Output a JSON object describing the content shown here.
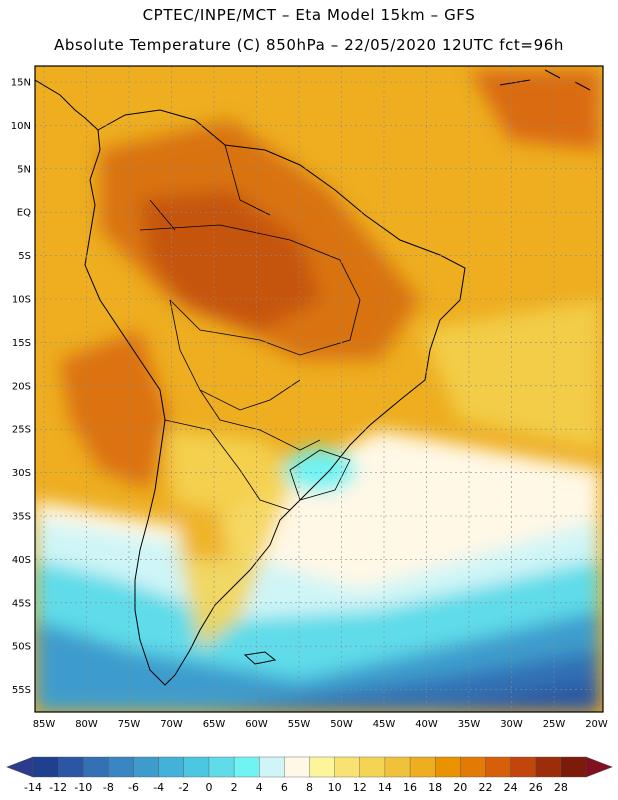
{
  "header": {
    "line1": "CPTEC/INPE/MCT –  Eta Model 15km – GFS",
    "line2": "Absolute Temperature (C) 850hPa – 22/05/2020 12UTC fct=96h"
  },
  "map": {
    "lat_labels": [
      "15N",
      "10N",
      "5N",
      "EQ",
      "5S",
      "10S",
      "15S",
      "20S",
      "25S",
      "30S",
      "35S",
      "40S",
      "45S",
      "50S",
      "55S"
    ],
    "lon_labels": [
      "85W",
      "80W",
      "75W",
      "70W",
      "65W",
      "60W",
      "55W",
      "50W",
      "45W",
      "40W",
      "35W",
      "30W",
      "25W",
      "20W"
    ]
  },
  "colorbar": {
    "labels": [
      "-14",
      "-12",
      "-10",
      "-8",
      "-6",
      "-4",
      "-2",
      "0",
      "2",
      "4",
      "6",
      "8",
      "10",
      "12",
      "14",
      "16",
      "18",
      "20",
      "22",
      "24",
      "26",
      "28"
    ],
    "colors": [
      "#1f3f8f",
      "#2a56a3",
      "#3370b4",
      "#3a86c2",
      "#3e9ccd",
      "#43b2d8",
      "#4cc7e1",
      "#5fdbe9",
      "#6ff3f3",
      "#cff5f7",
      "#fff8e6",
      "#fdf59a",
      "#f8e372",
      "#f4d453",
      "#f0c13a",
      "#eeae20",
      "#e99300",
      "#e27a05",
      "#d65f0a",
      "#c2460b",
      "#9c2d0b",
      "#7d1b0a"
    ],
    "under_color": "#2b3c8e",
    "over_color": "#821020"
  }
}
